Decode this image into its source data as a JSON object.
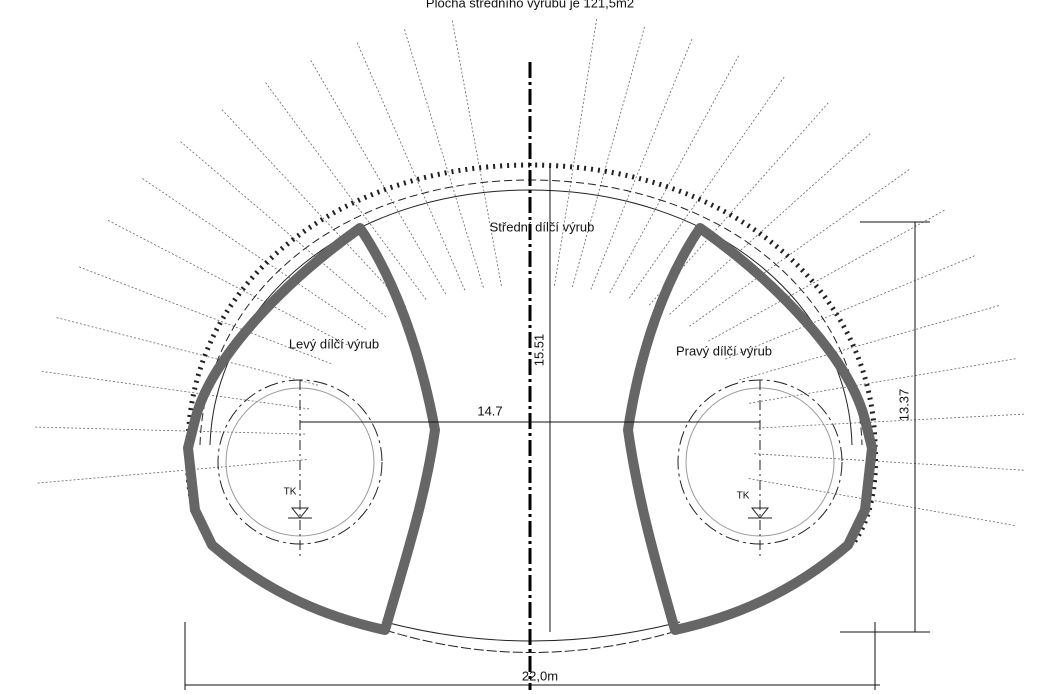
{
  "title": "Plocha středního výrubu je 121,5m2",
  "labels": {
    "middle": "Střední dílčí výrub",
    "left": "Levý dílčí výrub",
    "right": "Pravý dílčí výrub",
    "left_axis": "TK",
    "right_axis": "TK"
  },
  "dimensions": {
    "middle_height": "15.51",
    "axis_distance": "14.7",
    "side_height": "13.37",
    "total_width": "22,0m"
  }
}
